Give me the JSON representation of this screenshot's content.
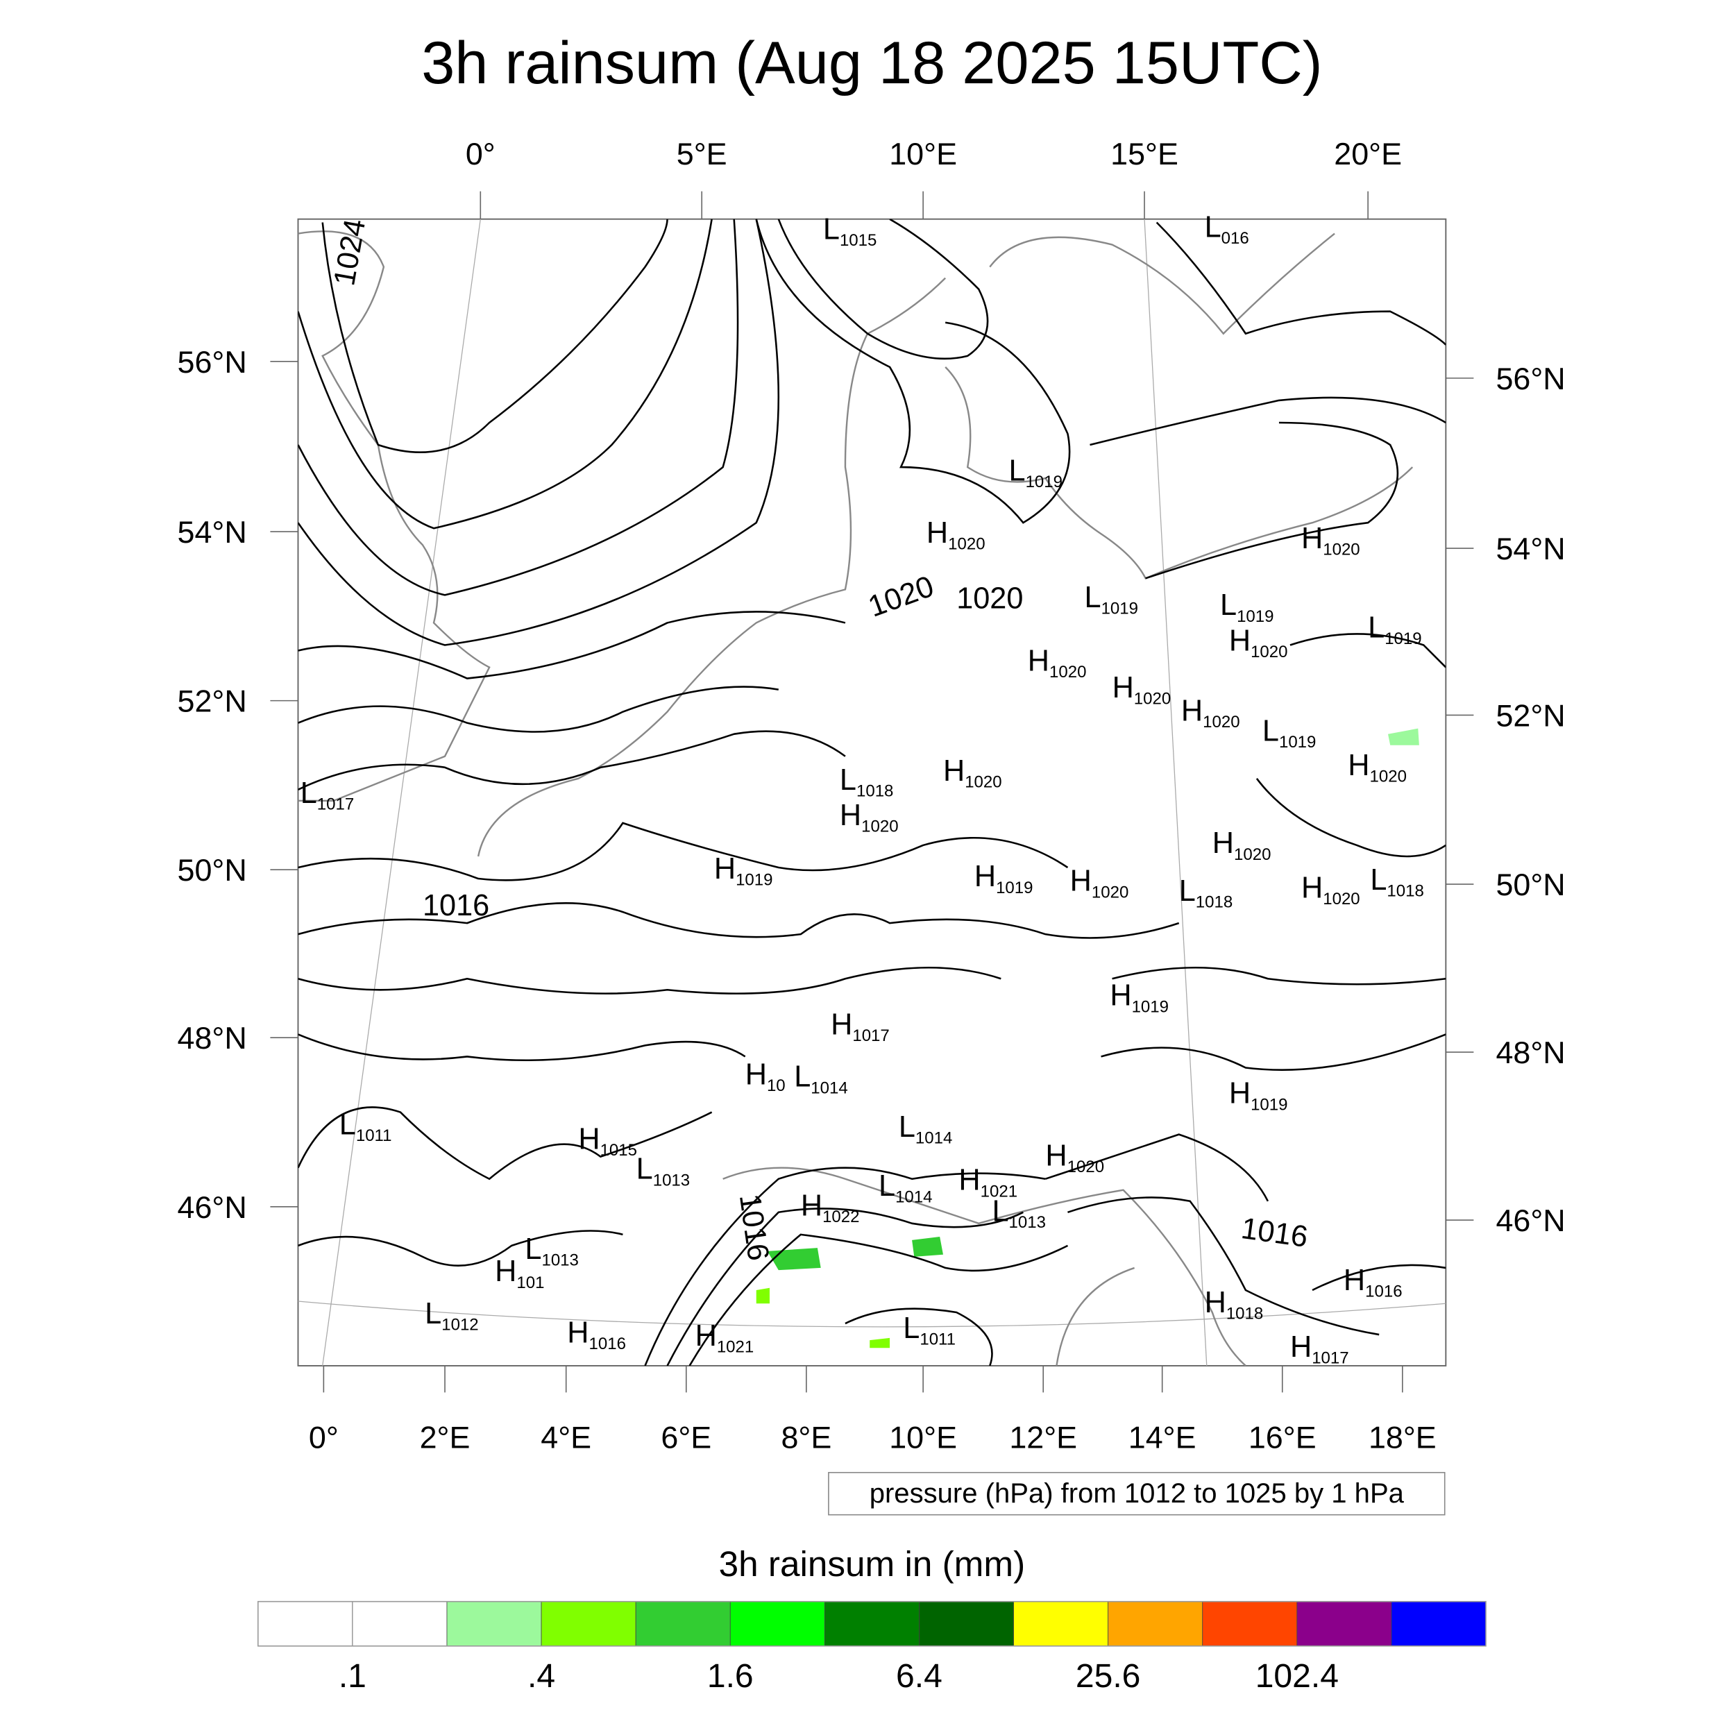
{
  "chart_data": {
    "type": "contour-map",
    "title": "3h rainsum (Aug 18 2025 15UTC)",
    "top_lon_ticks": [
      "0°",
      "5°E",
      "10°E",
      "15°E",
      "20°E"
    ],
    "bottom_lon_ticks": [
      "0°",
      "2°E",
      "4°E",
      "6°E",
      "8°E",
      "10°E",
      "12°E",
      "14°E",
      "16°E",
      "18°E"
    ],
    "left_lat_ticks": [
      "56°N",
      "54°N",
      "52°N",
      "50°N",
      "48°N",
      "46°N"
    ],
    "right_lat_ticks": [
      "56°N",
      "54°N",
      "52°N",
      "50°N",
      "48°N",
      "46°N"
    ],
    "contour_info": "pressure (hPa) from 1012 to 1025 by 1 hPa",
    "colorbar": {
      "title": "3h rainsum in (mm)",
      "colors": [
        "#ffffff",
        "#ffffff",
        "#9cf99c",
        "#80ff00",
        "#32cd32",
        "#00ff00",
        "#008000",
        "#006400",
        "#ffff00",
        "#ffa500",
        "#ff4500",
        "#8b008b",
        "#0000ff"
      ],
      "labels": [
        ".1",
        ".4",
        "1.6",
        "6.4",
        "25.6",
        "102.4"
      ]
    },
    "isobar_labels": [
      {
        "t": "L",
        "v": "1015"
      },
      {
        "t": "L",
        "v": "016"
      },
      {
        "t": "",
        "v": "1024"
      },
      {
        "t": "L",
        "v": "1019"
      },
      {
        "t": "H",
        "v": "1020"
      },
      {
        "t": "H",
        "v": "1020"
      },
      {
        "t": "",
        "v": "1020"
      },
      {
        "t": "",
        "v": "1020"
      },
      {
        "t": "L",
        "v": "1019"
      },
      {
        "t": "L",
        "v": "1019"
      },
      {
        "t": "H",
        "v": "1020"
      },
      {
        "t": "L",
        "v": "1019"
      },
      {
        "t": "H",
        "v": "1020"
      },
      {
        "t": "H",
        "v": "1020"
      },
      {
        "t": "H",
        "v": "1020"
      },
      {
        "t": "L",
        "v": "1019"
      },
      {
        "t": "H",
        "v": "1020"
      },
      {
        "t": "L",
        "v": "1018"
      },
      {
        "t": "H",
        "v": "1020"
      },
      {
        "t": "H",
        "v": "1020"
      },
      {
        "t": "L",
        "v": "1017"
      },
      {
        "t": "H",
        "v": "1020"
      },
      {
        "t": "H",
        "v": "1019"
      },
      {
        "t": "H",
        "v": "1019"
      },
      {
        "t": "H",
        "v": "1020"
      },
      {
        "t": "L",
        "v": "1018"
      },
      {
        "t": "H",
        "v": "1020"
      },
      {
        "t": "L",
        "v": "1018"
      },
      {
        "t": "",
        "v": "1016"
      },
      {
        "t": "H",
        "v": "1019"
      },
      {
        "t": "H",
        "v": "1017"
      },
      {
        "t": "H",
        "v": "10"
      },
      {
        "t": "L",
        "v": "1014"
      },
      {
        "t": "L",
        "v": "1011"
      },
      {
        "t": "H",
        "v": "1015"
      },
      {
        "t": "L",
        "v": "1014"
      },
      {
        "t": "L",
        "v": "1013"
      },
      {
        "t": "H",
        "v": "1020"
      },
      {
        "t": "H",
        "v": "1019"
      },
      {
        "t": "L",
        "v": "1014"
      },
      {
        "t": "H",
        "v": "1021"
      },
      {
        "t": "H",
        "v": "1022"
      },
      {
        "t": "L",
        "v": "1013"
      },
      {
        "t": "",
        "v": "1016"
      },
      {
        "t": "",
        "v": "1016"
      },
      {
        "t": "L",
        "v": "1013"
      },
      {
        "t": "H",
        "v": "101"
      },
      {
        "t": "H",
        "v": "1016"
      },
      {
        "t": "H",
        "v": "1018"
      },
      {
        "t": "L",
        "v": "1012"
      },
      {
        "t": "H",
        "v": "1016"
      },
      {
        "t": "H",
        "v": "1021"
      },
      {
        "t": "L",
        "v": "1011"
      },
      {
        "t": "H",
        "v": "1017"
      }
    ]
  }
}
